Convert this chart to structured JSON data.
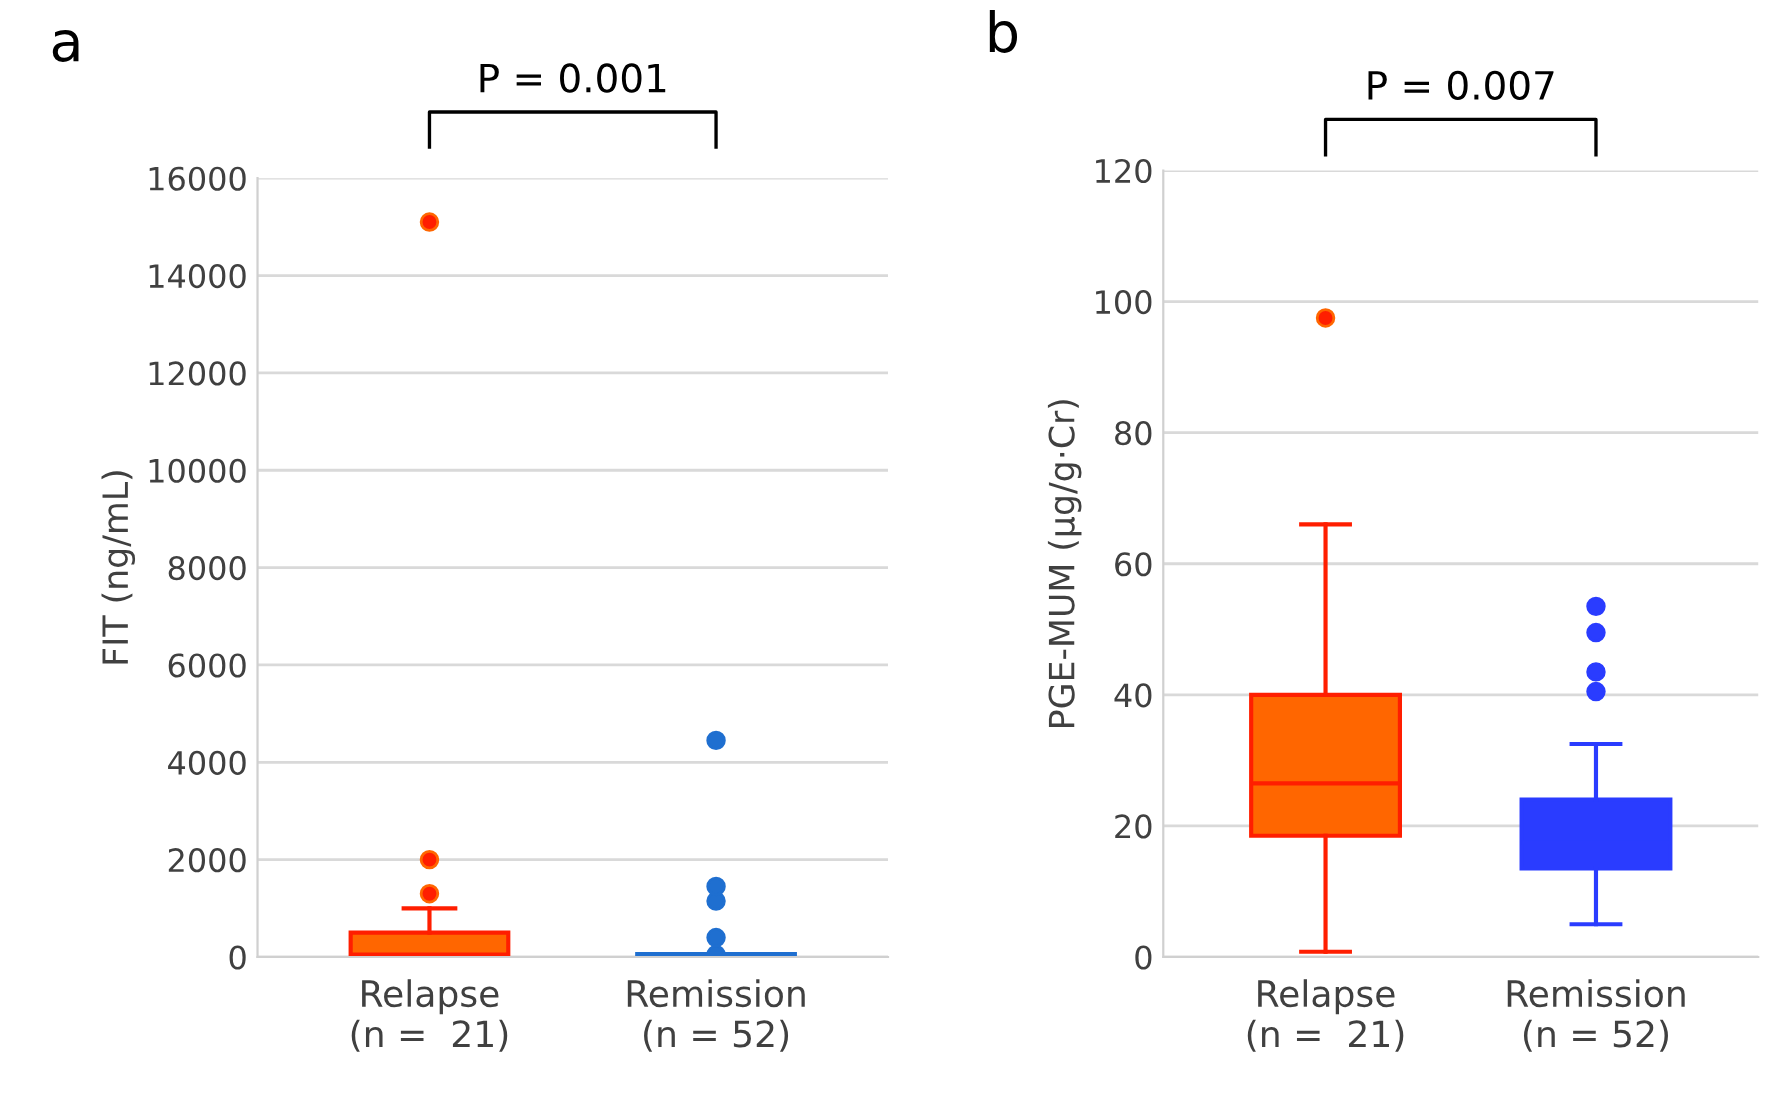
{
  "chart_data": [
    {
      "type": "box",
      "ylabel": "FIT (ng/mL)",
      "annotations": [
        "a",
        "P = 0.001"
      ],
      "categories": [
        "Relapse\n(n =  21)",
        "Remission\n(n = 52)"
      ],
      "ylim": [
        0,
        16000
      ],
      "yticks": [
        0,
        2000,
        4000,
        6000,
        8000,
        10000,
        12000,
        14000,
        16000
      ],
      "grid": "y",
      "series": [
        {
          "color": "#ff6600",
          "boxes": [
            {
              "low": 0,
              "q1": 0,
              "median": 50,
              "q3": 500,
              "high": 1000,
              "outliers": [
                1300,
                2000,
                15100
              ]
            },
            null
          ]
        },
        {
          "color": "#1f6fd0",
          "boxes": [
            null,
            {
              "low": 0,
              "q1": 0,
              "median": 20,
              "q3": 60,
              "high": 60,
              "outliers": [
                50,
                400,
                1150,
                1450,
                4450
              ]
            }
          ]
        }
      ]
    },
    {
      "type": "box",
      "ylabel": "PGE-MUM (μg/g·Cr)",
      "annotations": [
        "b",
        "P = 0.007"
      ],
      "categories": [
        "Relapse\n(n =  21)",
        "Remission\n(n = 52)"
      ],
      "ylim": [
        0,
        120
      ],
      "yticks": [
        0,
        20,
        40,
        60,
        80,
        100,
        120
      ],
      "grid": "y",
      "series": [
        {
          "color": "#ff6600",
          "boxes": [
            {
              "low": 0.8,
              "q1": 18.5,
              "median": 26.5,
              "q3": 40,
              "high": 66,
              "outliers": [
                97.5
              ]
            },
            null
          ]
        },
        {
          "color": "#2a3cff",
          "boxes": [
            null,
            {
              "low": 5,
              "q1": 13.5,
              "median": 17.5,
              "q3": 24,
              "high": 32.5,
              "outliers": [
                40.5,
                43.5,
                49.5,
                53.5
              ]
            }
          ]
        }
      ]
    }
  ]
}
